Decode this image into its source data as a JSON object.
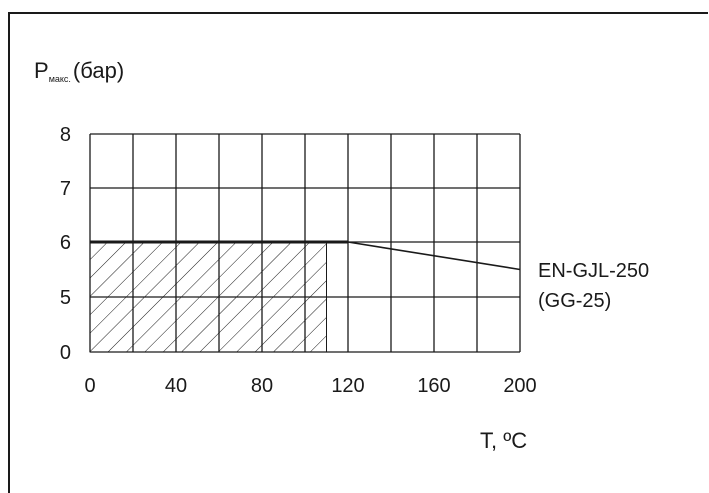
{
  "chart_data": {
    "type": "line",
    "ylabel_main": "P",
    "ylabel_sub": "макс.",
    "ylabel_unit": "(бар)",
    "xlabel": "T, ºC",
    "x_ticks": [
      "0",
      "40",
      "80",
      "120",
      "160",
      "200"
    ],
    "y_ticks": [
      "0",
      "5",
      "6",
      "7",
      "8"
    ],
    "xlim": [
      0,
      200
    ],
    "y_levels": [
      0,
      5,
      6,
      7,
      8
    ],
    "grid": true,
    "series": [
      {
        "name": "EN-GJL-250",
        "name_line2": "(GG-25)",
        "x": [
          0,
          120,
          200
        ],
        "y": [
          6,
          6,
          5.5
        ]
      }
    ],
    "hatched_region": {
      "x": [
        0,
        110
      ],
      "y": [
        0,
        6
      ]
    }
  }
}
